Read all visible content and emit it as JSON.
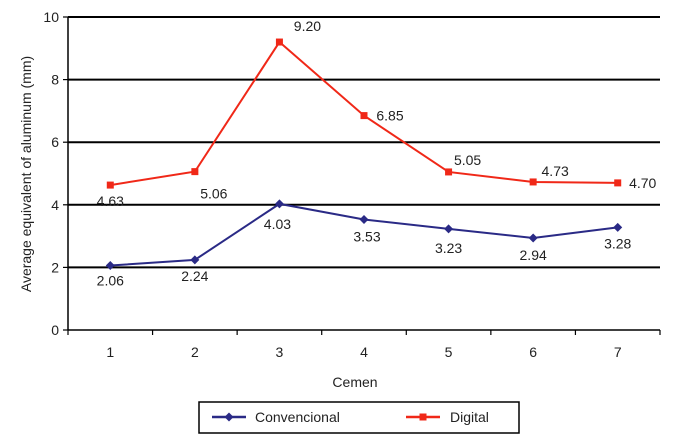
{
  "chart_data": {
    "type": "line",
    "title": "",
    "xlabel": "Cemen",
    "ylabel": "Average equivalent of aluminum (mm)",
    "categories": [
      "1",
      "2",
      "3",
      "4",
      "5",
      "6",
      "7"
    ],
    "ylim": [
      0,
      10
    ],
    "yticks": [
      "0",
      "2",
      "4",
      "6",
      "8",
      "10"
    ],
    "grid": true,
    "legend_position": "bottom",
    "series": [
      {
        "name": "Convencional",
        "color": "#2a2a86",
        "marker": "diamond",
        "values": [
          2.06,
          2.24,
          4.03,
          3.53,
          3.23,
          2.94,
          3.28
        ],
        "labels": [
          "2.06",
          "2.24",
          "4.03",
          "3.53",
          "3.23",
          "2.94",
          "3.28"
        ]
      },
      {
        "name": "Digital",
        "color": "#f02818",
        "marker": "square",
        "values": [
          4.63,
          5.06,
          9.2,
          6.85,
          5.05,
          4.73,
          4.7
        ],
        "labels": [
          "4.63",
          "5.06",
          "9.20",
          "6.85",
          "5.05",
          "4.73",
          "4.70"
        ]
      }
    ]
  }
}
